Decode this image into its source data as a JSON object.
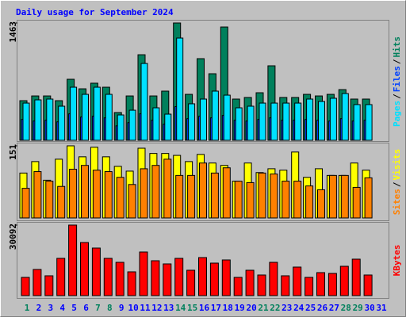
{
  "chart_data": [
    {
      "type": "bar",
      "title": "Daily usage for September 2024",
      "title_color": "#0000ff",
      "legend_separator": "/",
      "series": [
        {
          "name": "Hits",
          "color": "#00805c",
          "values": [
            494,
            553,
            553,
            494,
            761,
            642,
            712,
            662,
            346,
            553,
            1067,
            553,
            613,
            1463,
            573,
            1018,
            830,
            1413,
            514,
            534,
            593,
            929,
            534,
            534,
            573,
            553,
            573,
            632,
            514,
            514,
            null
          ]
        },
        {
          "name": "Files",
          "color": "#0040ff",
          "values": [
            260,
            240,
            250,
            230,
            330,
            290,
            300,
            280,
            180,
            220,
            330,
            250,
            200,
            420,
            270,
            300,
            280,
            310,
            250,
            240,
            260,
            280,
            250,
            250,
            260,
            250,
            240,
            270,
            240,
            250,
            null
          ]
        },
        {
          "name": "Pages",
          "color": "#00e0ff",
          "values": [
            464,
            504,
            514,
            425,
            662,
            573,
            662,
            573,
            316,
            375,
            958,
            405,
            326,
            1275,
            455,
            514,
            613,
            563,
            405,
            425,
            464,
            464,
            464,
            464,
            514,
            484,
            524,
            583,
            445,
            445,
            null
          ]
        }
      ],
      "ylim": [
        0,
        1463
      ],
      "yticks": [
        1463
      ]
    },
    {
      "type": "bar",
      "legend_separator": "/",
      "series": [
        {
          "name": "Visits",
          "color": "#ffff00",
          "values": [
            94,
            118,
            79,
            123,
            151,
            128,
            148,
            128,
            108,
            98,
            146,
            135,
            135,
            131,
            118,
            133,
            115,
            110,
            77,
            115,
            95,
            103,
            100,
            138,
            85,
            103,
            89,
            89,
            115,
            100,
            null
          ]
        },
        {
          "name": "Sites",
          "color": "#ff8000",
          "values": [
            62,
            97,
            77,
            66,
            102,
            110,
            100,
            97,
            85,
            70,
            103,
            110,
            123,
            89,
            89,
            115,
            94,
            105,
            77,
            74,
            94,
            92,
            77,
            77,
            67,
            59,
            89,
            89,
            64,
            84,
            null
          ]
        }
      ],
      "ylim": [
        0,
        151
      ],
      "yticks": [
        151
      ]
    },
    {
      "type": "bar",
      "categories": [
        "1",
        "2",
        "3",
        "4",
        "5",
        "6",
        "7",
        "8",
        "9",
        "10",
        "11",
        "12",
        "13",
        "14",
        "15",
        "16",
        "17",
        "18",
        "19",
        "20",
        "21",
        "22",
        "23",
        "24",
        "25",
        "26",
        "27",
        "28",
        "29",
        "30",
        "31"
      ],
      "category_color": "#0000ff",
      "weekend_color": "#00805c",
      "weekend": [
        0,
        6,
        7,
        13,
        14,
        20,
        21,
        27,
        28
      ],
      "series": [
        {
          "name": "KBytes",
          "color": "#ff0000",
          "values": [
            7777,
            11158,
            8453,
            15891,
            30092,
            22654,
            20288,
            15891,
            14201,
            10144,
            18597,
            14877,
            13525,
            15891,
            10820,
            16229,
            13863,
            15215,
            7777,
            10820,
            8791,
            14201,
            8453,
            12172,
            7777,
            9806,
            9467,
            12510,
            15553,
            8791,
            null
          ]
        }
      ],
      "ylim": [
        0,
        30092
      ],
      "yticks": [
        30092
      ]
    }
  ]
}
